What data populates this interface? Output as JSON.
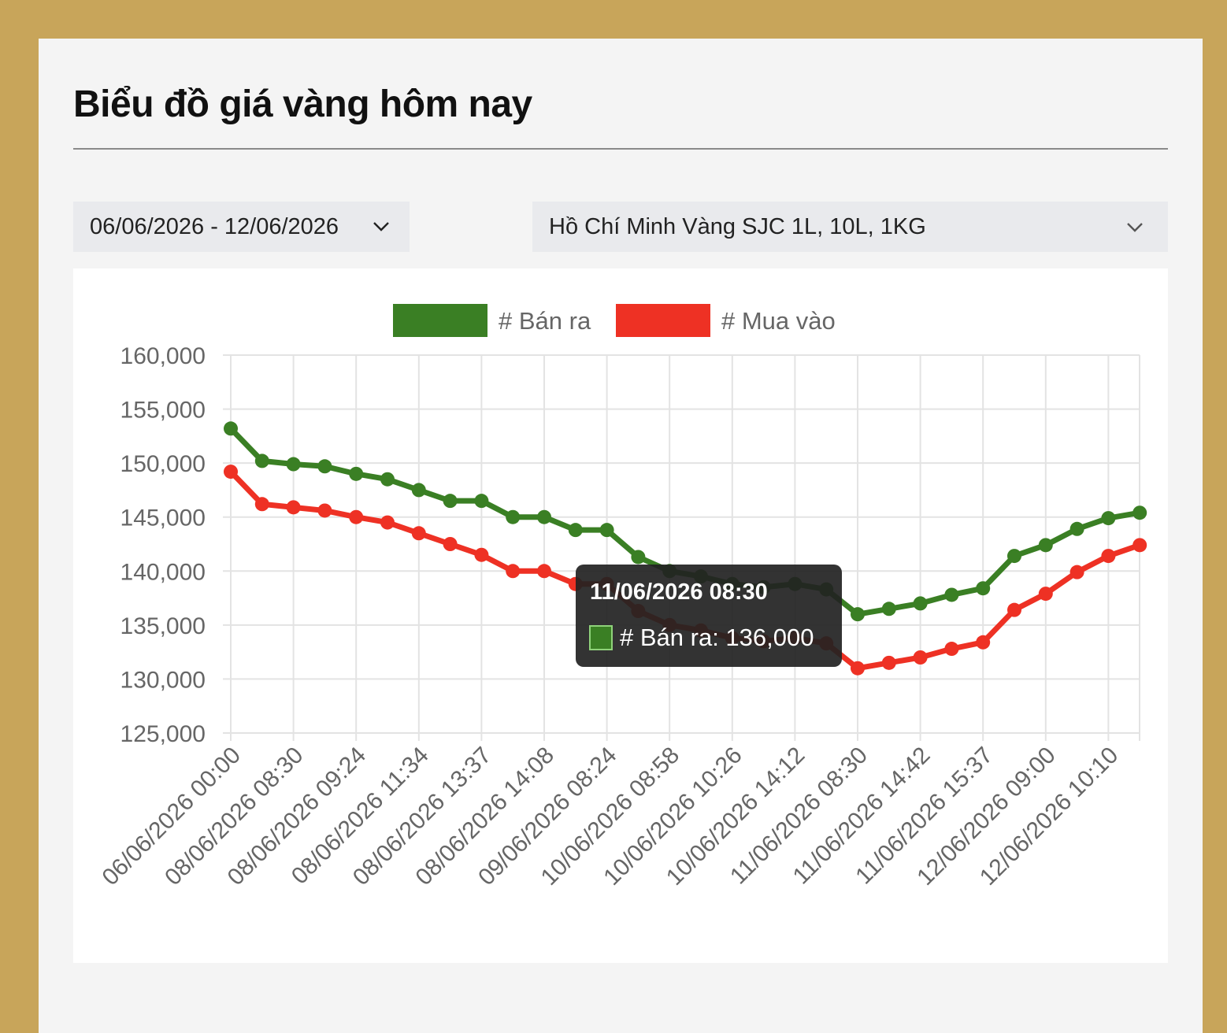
{
  "header": {
    "title": "Biểu đồ giá vàng hôm nay"
  },
  "filters": {
    "date_range": "06/06/2026 - 12/06/2026",
    "location_product": "Hồ Chí Minh Vàng SJC 1L, 10L, 1KG"
  },
  "colors": {
    "sell": "#3a7f24",
    "buy": "#ee3124",
    "tooltip_bg": "#222222"
  },
  "tooltip": {
    "title": "11/06/2026 08:30",
    "line": "# Bán ra: 136,000"
  },
  "chart_data": {
    "type": "line",
    "legend_position": "top-center",
    "grid": true,
    "ylim": [
      125000,
      160000
    ],
    "y_ticks": [
      "160,000",
      "155,000",
      "150,000",
      "145,000",
      "140,000",
      "135,000",
      "130,000",
      "125,000"
    ],
    "x_tick_labels": [
      "06/06/2026 00:00",
      "08/06/2026 08:30",
      "08/06/2026 09:24",
      "08/06/2026 11:34",
      "08/06/2026 13:37",
      "08/06/2026 14:08",
      "09/06/2026 08:24",
      "10/06/2026 08:58",
      "10/06/2026 10:26",
      "10/06/2026 14:12",
      "11/06/2026 08:30",
      "11/06/2026 14:42",
      "11/06/2026 15:37",
      "12/06/2026 09:00",
      "12/06/2026 10:10"
    ],
    "series": [
      {
        "name": "# Bán ra",
        "color": "#3a7f24",
        "values": [
          153200,
          150200,
          149900,
          149700,
          149000,
          148500,
          147500,
          146500,
          146500,
          145000,
          145000,
          143800,
          143800,
          141300,
          140000,
          139500,
          138800,
          138500,
          138800,
          138300,
          136000,
          136500,
          137000,
          137800,
          138400,
          141400,
          142400,
          143900,
          144900,
          145400
        ]
      },
      {
        "name": "# Mua vào",
        "color": "#ee3124",
        "values": [
          149200,
          146200,
          145900,
          145600,
          145000,
          144500,
          143500,
          142500,
          141500,
          140000,
          140000,
          138800,
          138800,
          136300,
          135000,
          134500,
          133800,
          133500,
          133800,
          133300,
          131000,
          131500,
          132000,
          132800,
          133400,
          136400,
          137900,
          139900,
          141400,
          142400
        ]
      }
    ]
  }
}
